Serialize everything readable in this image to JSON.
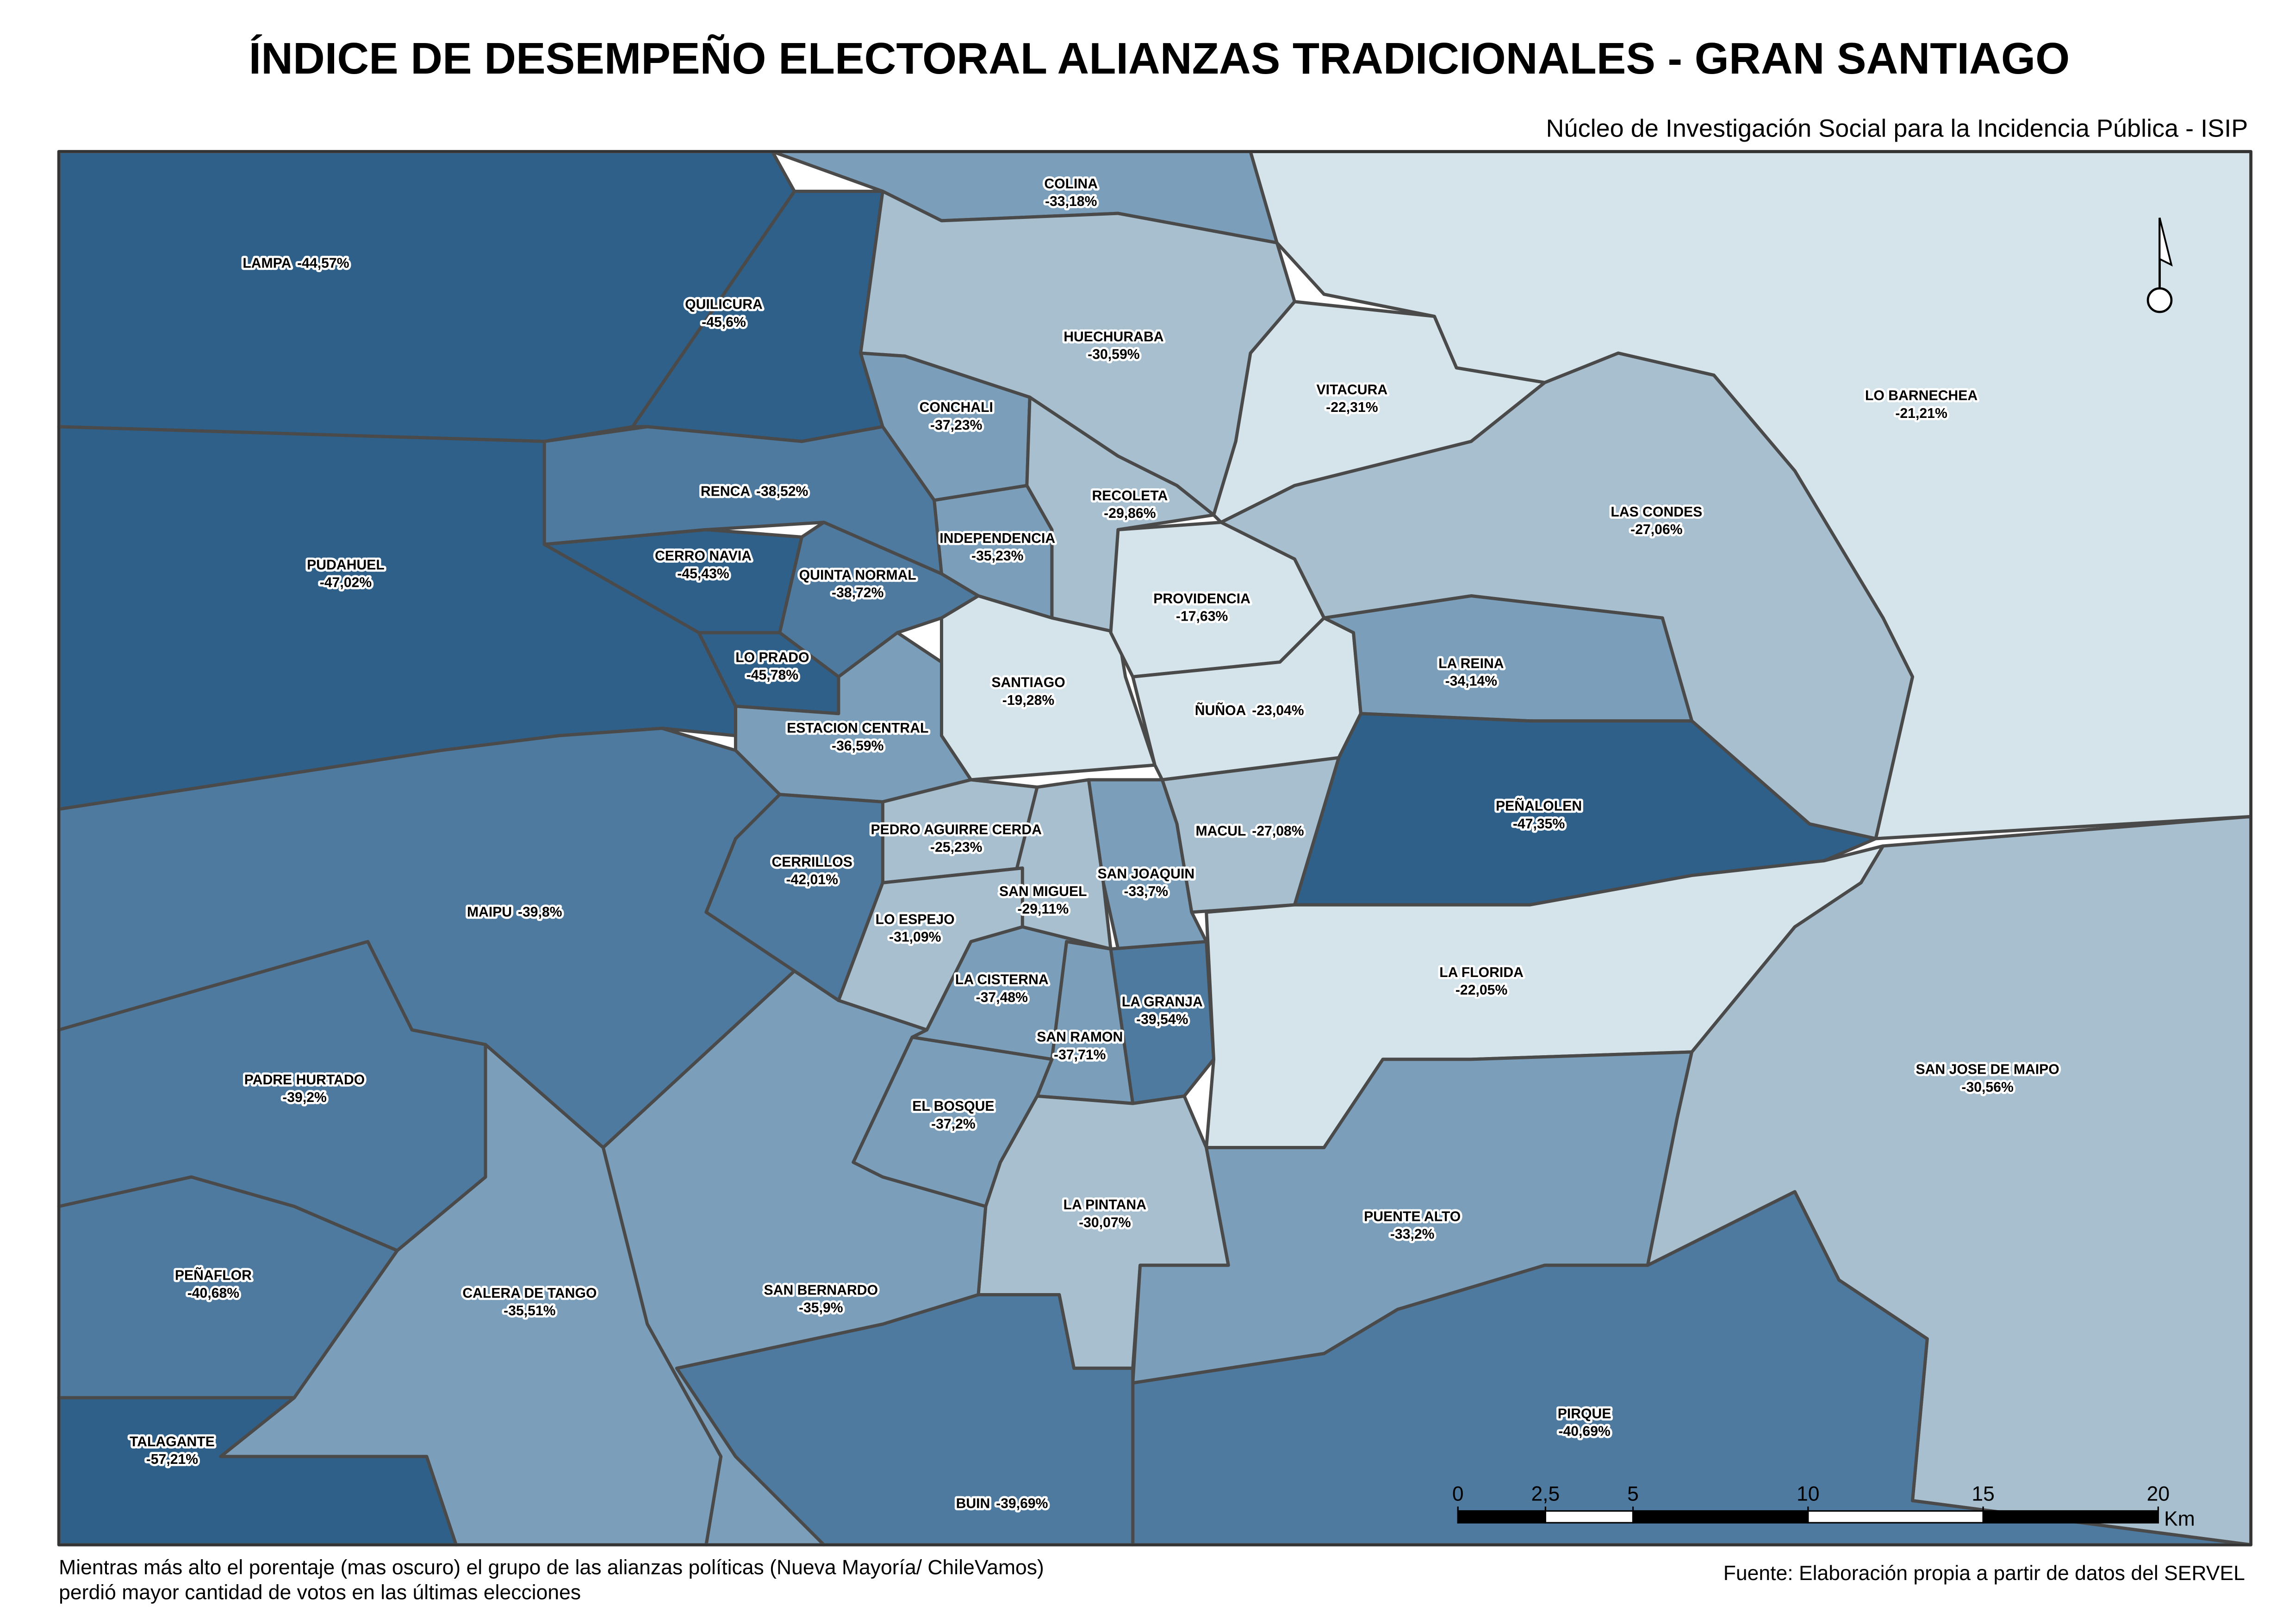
{
  "title": "ÍNDICE DE DESEMPEÑO ELECTORAL ALIANZAS TRADICIONALES - GRAN SANTIAGO",
  "subtitle": "Núcleo de Investigación Social para la Incidencia Pública - ISIP",
  "communes": [
    {
      "name": "LAMPA",
      "value_label": "-44,57%",
      "value": -44.57
    },
    {
      "name": "QUILICURA",
      "value_label": "-45,6%",
      "value": -45.6
    },
    {
      "name": "COLINA",
      "value_label": "-33,18%",
      "value": -33.18
    },
    {
      "name": "LO BARNECHEA",
      "value_label": "-21,21%",
      "value": -21.21
    },
    {
      "name": "HUECHURABA",
      "value_label": "-30,59%",
      "value": -30.59
    },
    {
      "name": "VITACURA",
      "value_label": "-22,31%",
      "value": -22.31
    },
    {
      "name": "LAS CONDES",
      "value_label": "-27,06%",
      "value": -27.06
    },
    {
      "name": "CONCHALI",
      "value_label": "-37,23%",
      "value": -37.23
    },
    {
      "name": "RECOLETA",
      "value_label": "-29,86%",
      "value": -29.86
    },
    {
      "name": "INDEPENDENCIA",
      "value_label": "-35,23%",
      "value": -35.23
    },
    {
      "name": "RENCA",
      "value_label": "-38,52%",
      "value": -38.52
    },
    {
      "name": "PUDAHUEL",
      "value_label": "-47,02%",
      "value": -47.02
    },
    {
      "name": "CERRO NAVIA",
      "value_label": "-45,43%",
      "value": -45.43
    },
    {
      "name": "QUINTA NORMAL",
      "value_label": "-38,72%",
      "value": -38.72
    },
    {
      "name": "LO PRADO",
      "value_label": "-45,78%",
      "value": -45.78
    },
    {
      "name": "SANTIAGO",
      "value_label": "-19,28%",
      "value": -19.28
    },
    {
      "name": "PROVIDENCIA",
      "value_label": "-17,63%",
      "value": -17.63
    },
    {
      "name": "ÑUÑOA",
      "value_label": "-23,04%",
      "value": -23.04
    },
    {
      "name": "LA REINA",
      "value_label": "-34,14%",
      "value": -34.14
    },
    {
      "name": "PEÑALOLEN",
      "value_label": "-47,35%",
      "value": -47.35
    },
    {
      "name": "ESTACION CENTRAL",
      "value_label": "-36,59%",
      "value": -36.59
    },
    {
      "name": "MACUL",
      "value_label": "-27,08%",
      "value": -27.08
    },
    {
      "name": "SAN JOAQUIN",
      "value_label": "-33,7%",
      "value": -33.7
    },
    {
      "name": "PEDRO AGUIRRE CERDA",
      "value_label": "-25,23%",
      "value": -25.23
    },
    {
      "name": "SAN MIGUEL",
      "value_label": "-29,11%",
      "value": -29.11
    },
    {
      "name": "CERRILLOS",
      "value_label": "-42,01%",
      "value": -42.01
    },
    {
      "name": "MAIPU",
      "value_label": "-39,8%",
      "value": -39.8
    },
    {
      "name": "LO ESPEJO",
      "value_label": "-31,09%",
      "value": -31.09
    },
    {
      "name": "LA CISTERNA",
      "value_label": "-37,48%",
      "value": -37.48
    },
    {
      "name": "LA GRANJA",
      "value_label": "-39,54%",
      "value": -39.54
    },
    {
      "name": "SAN RAMON",
      "value_label": "-37,71%",
      "value": -37.71
    },
    {
      "name": "LA FLORIDA",
      "value_label": "-22,05%",
      "value": -22.05
    },
    {
      "name": "EL BOSQUE",
      "value_label": "-37,2%",
      "value": -37.2
    },
    {
      "name": "LA PINTANA",
      "value_label": "-30,07%",
      "value": -30.07
    },
    {
      "name": "PUENTE ALTO",
      "value_label": "-33,2%",
      "value": -33.2
    },
    {
      "name": "SAN JOSE DE MAIPO",
      "value_label": "-30,56%",
      "value": -30.56
    },
    {
      "name": "PIRQUE",
      "value_label": "-40,69%",
      "value": -40.69
    },
    {
      "name": "BUIN",
      "value_label": "-39,69%",
      "value": -39.69
    },
    {
      "name": "SAN BERNARDO",
      "value_label": "-35,9%",
      "value": -35.9
    },
    {
      "name": "CALERA DE TANGO",
      "value_label": "-35,51%",
      "value": -35.51
    },
    {
      "name": "PADRE HURTADO",
      "value_label": "-39,2%",
      "value": -39.2
    },
    {
      "name": "PEÑAFLOR",
      "value_label": "-40,68%",
      "value": -40.68
    },
    {
      "name": "TALAGANTE",
      "value_label": "-57,21%",
      "value": -57.21
    }
  ],
  "scale_bar": {
    "ticks": [
      0,
      {
        "value": 2.5,
        "label": "2,5"
      },
      5,
      10,
      15,
      20
    ],
    "unit": "Km"
  },
  "notes": [
    "Mientras más alto el porentaje (mas oscuro) el grupo de las alianzas políticas (Nueva Mayoría/ ChileVamos)",
    "perdió mayor cantidad de votos en las últimas elecciones"
  ],
  "source": "Fuente: Elaboración propia a partir de datos del SERVEL"
}
